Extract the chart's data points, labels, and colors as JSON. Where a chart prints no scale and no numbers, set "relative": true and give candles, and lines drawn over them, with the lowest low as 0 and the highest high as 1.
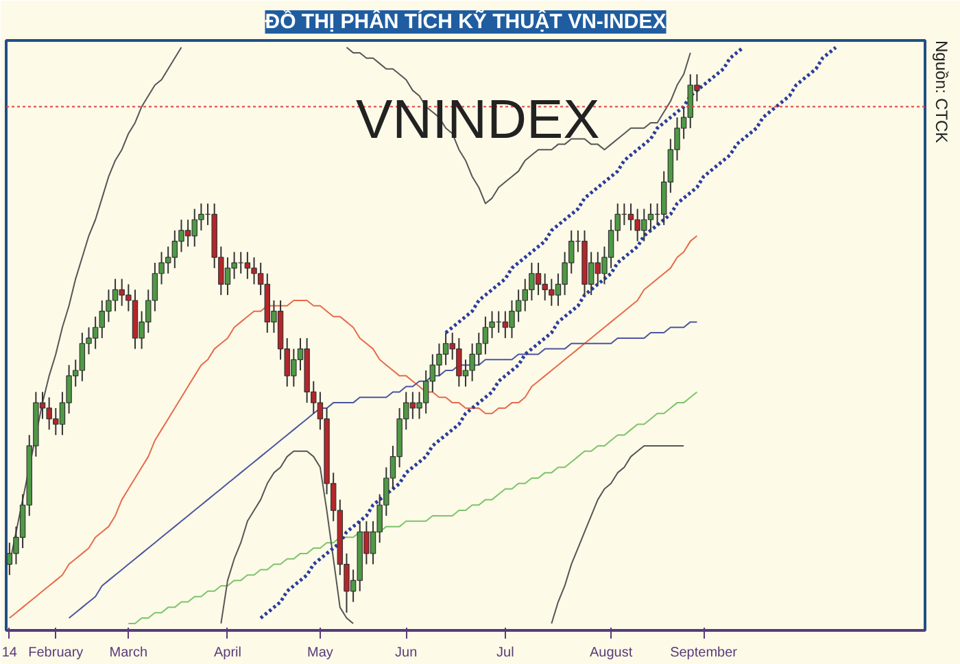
{
  "chart_data": {
    "type": "candlestick",
    "title": "ĐỒ THỊ PHÂN TÍCH KỸ THUẬT VN-INDEX",
    "relative": true,
    "grid": false,
    "annotations": [
      "VNINDEX",
      "Nguồn: CTCK"
    ],
    "categories": [
      "14",
      null,
      null,
      null,
      null,
      null,
      null,
      "February",
      null,
      null,
      null,
      null,
      null,
      null,
      null,
      null,
      null,
      null,
      "March",
      null,
      null,
      null,
      null,
      null,
      null,
      null,
      null,
      null,
      null,
      null,
      null,
      null,
      null,
      "April",
      null,
      null,
      null,
      null,
      null,
      null,
      null,
      null,
      null,
      null,
      null,
      null,
      null,
      "May",
      null,
      null,
      null,
      null,
      null,
      null,
      null,
      null,
      null,
      null,
      null,
      null,
      "Jun",
      null,
      null,
      null,
      null,
      null,
      null,
      null,
      null,
      null,
      null,
      null,
      null,
      null,
      null,
      "Jul",
      null,
      null,
      null,
      null,
      null,
      null,
      null,
      null,
      null,
      null,
      null,
      null,
      null,
      null,
      null,
      "August",
      null,
      null,
      null,
      null,
      null,
      null,
      null,
      null,
      null,
      null,
      null,
      null,
      null,
      "September",
      null,
      null,
      null,
      null,
      null,
      null,
      null,
      null,
      null,
      null,
      null,
      null,
      null,
      null,
      null,
      null,
      null,
      null,
      null,
      null,
      null,
      null,
      null,
      null,
      null,
      null,
      null,
      null,
      null,
      null,
      null,
      null,
      null
    ],
    "ohlc": [
      [
        0.09,
        0.13,
        0.07,
        0.11
      ],
      [
        0.11,
        0.16,
        0.09,
        0.14
      ],
      [
        0.14,
        0.22,
        0.12,
        0.2
      ],
      [
        0.2,
        0.33,
        0.18,
        0.31
      ],
      [
        0.31,
        0.41,
        0.29,
        0.39
      ],
      [
        0.39,
        0.41,
        0.36,
        0.38
      ],
      [
        0.38,
        0.4,
        0.34,
        0.36
      ],
      [
        0.36,
        0.38,
        0.33,
        0.35
      ],
      [
        0.35,
        0.41,
        0.33,
        0.39
      ],
      [
        0.39,
        0.46,
        0.37,
        0.44
      ],
      [
        0.44,
        0.47,
        0.42,
        0.45
      ],
      [
        0.45,
        0.52,
        0.43,
        0.5
      ],
      [
        0.5,
        0.53,
        0.48,
        0.51
      ],
      [
        0.51,
        0.55,
        0.49,
        0.53
      ],
      [
        0.53,
        0.58,
        0.51,
        0.56
      ],
      [
        0.56,
        0.6,
        0.54,
        0.58
      ],
      [
        0.58,
        0.62,
        0.56,
        0.6
      ],
      [
        0.6,
        0.62,
        0.57,
        0.59
      ],
      [
        0.59,
        0.61,
        0.56,
        0.58
      ],
      [
        0.58,
        0.6,
        0.49,
        0.51
      ],
      [
        0.51,
        0.56,
        0.49,
        0.54
      ],
      [
        0.54,
        0.6,
        0.52,
        0.58
      ],
      [
        0.58,
        0.65,
        0.56,
        0.63
      ],
      [
        0.63,
        0.67,
        0.61,
        0.65
      ],
      [
        0.65,
        0.68,
        0.63,
        0.66
      ],
      [
        0.66,
        0.71,
        0.64,
        0.69
      ],
      [
        0.69,
        0.73,
        0.67,
        0.71
      ],
      [
        0.71,
        0.73,
        0.68,
        0.7
      ],
      [
        0.7,
        0.75,
        0.68,
        0.73
      ],
      [
        0.73,
        0.76,
        0.71,
        0.74
      ],
      [
        0.74,
        0.76,
        0.72,
        0.74
      ],
      [
        0.74,
        0.76,
        0.64,
        0.66
      ],
      [
        0.66,
        0.68,
        0.59,
        0.61
      ],
      [
        0.61,
        0.66,
        0.59,
        0.64
      ],
      [
        0.64,
        0.67,
        0.62,
        0.65
      ],
      [
        0.65,
        0.67,
        0.63,
        0.65
      ],
      [
        0.65,
        0.67,
        0.62,
        0.64
      ],
      [
        0.64,
        0.66,
        0.61,
        0.63
      ],
      [
        0.63,
        0.65,
        0.59,
        0.61
      ],
      [
        0.61,
        0.63,
        0.52,
        0.54
      ],
      [
        0.54,
        0.58,
        0.52,
        0.56
      ],
      [
        0.56,
        0.58,
        0.47,
        0.49
      ],
      [
        0.49,
        0.51,
        0.42,
        0.44
      ],
      [
        0.44,
        0.49,
        0.42,
        0.47
      ],
      [
        0.47,
        0.51,
        0.45,
        0.49
      ],
      [
        0.49,
        0.51,
        0.39,
        0.41
      ],
      [
        0.41,
        0.43,
        0.37,
        0.39
      ],
      [
        0.39,
        0.41,
        0.34,
        0.36
      ],
      [
        0.36,
        0.38,
        0.22,
        0.24
      ],
      [
        0.24,
        0.26,
        0.17,
        0.19
      ],
      [
        0.19,
        0.21,
        0.07,
        0.09
      ],
      [
        0.09,
        0.11,
        0.0,
        0.04
      ],
      [
        0.04,
        0.08,
        0.02,
        0.06
      ],
      [
        0.06,
        0.17,
        0.04,
        0.15
      ],
      [
        0.15,
        0.17,
        0.09,
        0.11
      ],
      [
        0.11,
        0.17,
        0.09,
        0.15
      ],
      [
        0.15,
        0.22,
        0.13,
        0.2
      ],
      [
        0.2,
        0.27,
        0.18,
        0.25
      ],
      [
        0.25,
        0.31,
        0.23,
        0.29
      ],
      [
        0.29,
        0.38,
        0.27,
        0.36
      ],
      [
        0.36,
        0.41,
        0.34,
        0.39
      ],
      [
        0.39,
        0.41,
        0.36,
        0.38
      ],
      [
        0.38,
        0.41,
        0.36,
        0.39
      ],
      [
        0.39,
        0.45,
        0.37,
        0.43
      ],
      [
        0.43,
        0.48,
        0.41,
        0.46
      ],
      [
        0.46,
        0.5,
        0.44,
        0.48
      ],
      [
        0.48,
        0.52,
        0.46,
        0.5
      ],
      [
        0.5,
        0.52,
        0.47,
        0.49
      ],
      [
        0.49,
        0.51,
        0.42,
        0.44
      ],
      [
        0.44,
        0.47,
        0.42,
        0.45
      ],
      [
        0.45,
        0.5,
        0.43,
        0.48
      ],
      [
        0.48,
        0.52,
        0.46,
        0.5
      ],
      [
        0.5,
        0.55,
        0.48,
        0.53
      ],
      [
        0.53,
        0.56,
        0.51,
        0.54
      ],
      [
        0.54,
        0.56,
        0.52,
        0.54
      ],
      [
        0.54,
        0.56,
        0.51,
        0.53
      ],
      [
        0.53,
        0.58,
        0.51,
        0.56
      ],
      [
        0.56,
        0.6,
        0.54,
        0.58
      ],
      [
        0.58,
        0.62,
        0.56,
        0.6
      ],
      [
        0.6,
        0.65,
        0.58,
        0.63
      ],
      [
        0.63,
        0.65,
        0.59,
        0.61
      ],
      [
        0.61,
        0.63,
        0.58,
        0.6
      ],
      [
        0.6,
        0.62,
        0.57,
        0.59
      ],
      [
        0.59,
        0.63,
        0.57,
        0.61
      ],
      [
        0.61,
        0.67,
        0.59,
        0.65
      ],
      [
        0.65,
        0.71,
        0.63,
        0.69
      ],
      [
        0.69,
        0.71,
        0.67,
        0.69
      ],
      [
        0.69,
        0.71,
        0.59,
        0.61
      ],
      [
        0.61,
        0.67,
        0.59,
        0.65
      ],
      [
        0.65,
        0.67,
        0.61,
        0.63
      ],
      [
        0.63,
        0.68,
        0.61,
        0.66
      ],
      [
        0.66,
        0.73,
        0.64,
        0.71
      ],
      [
        0.71,
        0.76,
        0.69,
        0.74
      ],
      [
        0.74,
        0.76,
        0.72,
        0.74
      ],
      [
        0.74,
        0.76,
        0.71,
        0.73
      ],
      [
        0.73,
        0.75,
        0.69,
        0.71
      ],
      [
        0.71,
        0.75,
        0.69,
        0.73
      ],
      [
        0.73,
        0.76,
        0.71,
        0.74
      ],
      [
        0.74,
        0.76,
        0.72,
        0.74
      ],
      [
        0.74,
        0.82,
        0.72,
        0.8
      ],
      [
        0.8,
        0.88,
        0.78,
        0.86
      ],
      [
        0.86,
        0.92,
        0.84,
        0.9
      ],
      [
        0.9,
        0.94,
        0.88,
        0.92
      ],
      [
        0.92,
        1.0,
        0.9,
        0.98
      ],
      [
        0.98,
        1.0,
        0.95,
        0.97
      ],
      null,
      null,
      null,
      null,
      null,
      null,
      null,
      null,
      null,
      null,
      null,
      null,
      null,
      null,
      null,
      null,
      null,
      null,
      null,
      null,
      null,
      null,
      null,
      null,
      null,
      null,
      null,
      null,
      null,
      null,
      null,
      null,
      null,
      null
    ],
    "series": [
      {
        "type": "line",
        "color": "#e8694a",
        "line_style": "solid",
        "values": [
          -0.01,
          0,
          0.01,
          0.02,
          0.03,
          0.04,
          0.05,
          0.06,
          0.07,
          0.09,
          0.1,
          0.11,
          0.12,
          0.14,
          0.15,
          0.16,
          0.18,
          0.21,
          0.23,
          0.25,
          0.27,
          0.29,
          0.32,
          0.34,
          0.36,
          0.38,
          0.4,
          0.42,
          0.44,
          0.46,
          0.47,
          0.49,
          0.5,
          0.51,
          0.53,
          0.54,
          0.55,
          0.56,
          0.56,
          0.57,
          0.57,
          0.57,
          0.57,
          0.58,
          0.58,
          0.58,
          0.57,
          0.57,
          0.56,
          0.55,
          0.55,
          0.54,
          0.53,
          0.51,
          0.5,
          0.49,
          0.47,
          0.46,
          0.45,
          0.44,
          0.44,
          0.43,
          0.42,
          0.41,
          0.41,
          0.4,
          0.4,
          0.39,
          0.39,
          0.38,
          0.38,
          0.38,
          0.37,
          0.37,
          0.38,
          0.38,
          0.39,
          0.39,
          0.4,
          0.42,
          0.43,
          0.44,
          0.45,
          0.46,
          0.47,
          0.48,
          0.49,
          0.5,
          0.51,
          0.52,
          0.53,
          0.54,
          0.55,
          0.56,
          0.57,
          0.58,
          0.6,
          0.61,
          0.62,
          0.63,
          0.64,
          0.66,
          0.67,
          0.69,
          0.7,
          null,
          null,
          null,
          null,
          null,
          null,
          null,
          null,
          null,
          null,
          null,
          null,
          null,
          null,
          null,
          null,
          null,
          null,
          null,
          null,
          null,
          null,
          null,
          null,
          null,
          null,
          null,
          null,
          null,
          null,
          null,
          null,
          null,
          null
        ]
      },
      {
        "type": "line",
        "color": "#4a55a0",
        "line_style": "solid",
        "values": [
          null,
          null,
          null,
          null,
          null,
          null,
          null,
          null,
          null,
          -0.01,
          0,
          0.01,
          0.02,
          0.03,
          0.05,
          0.06,
          0.07,
          0.08,
          0.09,
          0.1,
          0.11,
          0.12,
          0.13,
          0.14,
          0.15,
          0.16,
          0.17,
          0.18,
          0.19,
          0.2,
          0.21,
          0.22,
          0.23,
          0.24,
          0.25,
          0.26,
          0.27,
          0.28,
          0.29,
          0.3,
          0.31,
          0.32,
          0.33,
          0.34,
          0.35,
          0.36,
          0.37,
          0.38,
          0.38,
          0.39,
          0.39,
          0.39,
          0.39,
          0.4,
          0.4,
          0.4,
          0.4,
          0.4,
          0.41,
          0.41,
          0.42,
          0.42,
          0.43,
          0.43,
          0.44,
          0.44,
          0.45,
          0.45,
          0.46,
          0.46,
          0.46,
          0.46,
          0.47,
          0.47,
          0.47,
          0.47,
          0.47,
          0.48,
          0.48,
          0.48,
          0.48,
          0.49,
          0.49,
          0.49,
          0.49,
          0.5,
          0.5,
          0.5,
          0.5,
          0.5,
          0.5,
          0.5,
          0.51,
          0.51,
          0.51,
          0.51,
          0.51,
          0.52,
          0.52,
          0.52,
          0.53,
          0.53,
          0.53,
          0.54,
          0.54,
          null,
          null,
          null,
          null,
          null,
          null,
          null,
          null,
          null,
          null,
          null,
          null,
          null,
          null,
          null,
          null,
          null,
          null,
          null,
          null,
          null,
          null,
          null,
          null,
          null,
          null,
          null,
          null,
          null,
          null,
          null,
          null,
          null,
          null
        ]
      },
      {
        "type": "line",
        "color": "#7cc46a",
        "line_style": "solid",
        "values": [
          null,
          null,
          null,
          null,
          null,
          null,
          null,
          null,
          null,
          null,
          null,
          null,
          null,
          null,
          null,
          null,
          null,
          null,
          -0.02,
          -0.02,
          -0.01,
          -0.01,
          0,
          0,
          0.01,
          0.01,
          0.02,
          0.02,
          0.03,
          0.03,
          0.04,
          0.04,
          0.05,
          0.05,
          0.06,
          0.06,
          0.07,
          0.07,
          0.08,
          0.08,
          0.09,
          0.09,
          0.1,
          0.1,
          0.11,
          0.11,
          0.12,
          0.12,
          0.13,
          0.13,
          0.14,
          0.14,
          0.14,
          0.15,
          0.15,
          0.15,
          0.15,
          0.16,
          0.16,
          0.16,
          0.17,
          0.17,
          0.17,
          0.17,
          0.18,
          0.18,
          0.18,
          0.18,
          0.19,
          0.19,
          0.2,
          0.2,
          0.21,
          0.21,
          0.22,
          0.23,
          0.23,
          0.24,
          0.24,
          0.25,
          0.25,
          0.26,
          0.26,
          0.27,
          0.27,
          0.28,
          0.29,
          0.3,
          0.3,
          0.31,
          0.31,
          0.32,
          0.33,
          0.33,
          0.34,
          0.35,
          0.35,
          0.36,
          0.37,
          0.37,
          0.38,
          0.39,
          0.39,
          0.4,
          0.41,
          null,
          null,
          null,
          null,
          null,
          null,
          null,
          null,
          null,
          null,
          null,
          null,
          null,
          null,
          null,
          null,
          null,
          null,
          null,
          null,
          null,
          null,
          null,
          null,
          null,
          null,
          null,
          null,
          null,
          null,
          null,
          null,
          null,
          null
        ]
      },
      {
        "type": "line",
        "color": "#555555",
        "line_style": "solid",
        "values": [
          0.09,
          0.15,
          0.21,
          0.27,
          0.33,
          0.39,
          0.44,
          0.48,
          0.53,
          0.57,
          0.62,
          0.66,
          0.7,
          0.73,
          0.77,
          0.81,
          0.84,
          0.86,
          0.89,
          0.91,
          0.94,
          0.96,
          0.98,
          0.99,
          1.01,
          1.03,
          1.05,
          null,
          null,
          null,
          null,
          null,
          null,
          null,
          null,
          null,
          null,
          null,
          null,
          null,
          null,
          null,
          null,
          null,
          null,
          null,
          null,
          null,
          null,
          null,
          null,
          1.05,
          1.04,
          1.04,
          1.03,
          1.03,
          1.02,
          1.01,
          1.01,
          1.0,
          0.99,
          0.97,
          0.96,
          0.94,
          0.93,
          0.92,
          0.9,
          0.89,
          0.86,
          0.84,
          0.81,
          0.79,
          0.76,
          0.77,
          0.79,
          0.8,
          0.81,
          0.82,
          0.84,
          0.85,
          0.86,
          0.86,
          0.86,
          0.87,
          0.87,
          0.88,
          0.88,
          0.88,
          0.87,
          0.87,
          0.86,
          0.87,
          0.88,
          0.89,
          0.9,
          0.9,
          0.9,
          0.91,
          0.91,
          0.93,
          0.95,
          0.98,
          1.0,
          1.04,
          null,
          null,
          null,
          null,
          null,
          null,
          null,
          null,
          null,
          null,
          null,
          null,
          null,
          null,
          null,
          null,
          null,
          null,
          null,
          null,
          null,
          null,
          null,
          null,
          null,
          null,
          null,
          null,
          null,
          null,
          null,
          null,
          null,
          null,
          null
        ]
      },
      {
        "type": "line",
        "color": "#555555",
        "line_style": "solid",
        "values": [
          null,
          null,
          null,
          null,
          null,
          null,
          null,
          null,
          null,
          null,
          null,
          null,
          null,
          null,
          null,
          null,
          null,
          null,
          null,
          null,
          null,
          null,
          null,
          null,
          null,
          null,
          null,
          null,
          null,
          null,
          null,
          null,
          -0.02,
          0.06,
          0.1,
          0.13,
          0.17,
          0.19,
          0.21,
          0.24,
          0.26,
          0.27,
          0.29,
          0.3,
          0.3,
          0.3,
          0.29,
          0.27,
          0.19,
          0.1,
          0.01,
          -0.01,
          -0.02,
          null,
          null,
          null,
          null,
          null,
          null,
          null,
          null,
          null,
          null,
          null,
          null,
          null,
          null,
          null,
          null,
          null,
          null,
          null,
          null,
          null,
          null,
          null,
          null,
          null,
          null,
          null,
          null,
          null,
          -0.02,
          0.02,
          0.05,
          0.09,
          0.12,
          0.15,
          0.18,
          0.21,
          0.23,
          0.24,
          0.26,
          0.27,
          0.29,
          0.3,
          0.31,
          0.31,
          0.31,
          0.31,
          0.31,
          0.31,
          0.31,
          null,
          null,
          null,
          null,
          null,
          null,
          null,
          null,
          null,
          null,
          null,
          null,
          null,
          null,
          null,
          null,
          null,
          null,
          null,
          null,
          null,
          null,
          null,
          null,
          null,
          null,
          null,
          null,
          null,
          null,
          null,
          null,
          null,
          null,
          null,
          null
        ]
      },
      {
        "type": "line",
        "color": "#2b3d9a",
        "line_style": "dotted",
        "values": [
          null,
          null,
          null,
          null,
          null,
          null,
          null,
          null,
          null,
          null,
          null,
          null,
          null,
          null,
          null,
          null,
          null,
          null,
          null,
          null,
          null,
          null,
          null,
          null,
          null,
          null,
          null,
          null,
          null,
          null,
          null,
          null,
          null,
          null,
          null,
          null,
          null,
          null,
          -0.01,
          0,
          0.01,
          0.02,
          0.04,
          0.05,
          0.06,
          0.07,
          0.09,
          0.1,
          0.11,
          0.12,
          0.13,
          0.15,
          0.16,
          0.17,
          0.18,
          0.2,
          0.21,
          0.22,
          0.23,
          0.24,
          0.26,
          0.27,
          0.28,
          0.29,
          0.31,
          0.32,
          0.33,
          0.34,
          0.35,
          0.37,
          0.38,
          0.39,
          0.4,
          0.41,
          0.43,
          0.44,
          0.45,
          0.46,
          0.48,
          0.49,
          0.5,
          0.51,
          0.52,
          0.54,
          0.55,
          0.56,
          0.57,
          0.59,
          0.6,
          0.61,
          0.62,
          0.63,
          0.65,
          0.66,
          0.67,
          0.68,
          0.7,
          0.71,
          0.72,
          0.73,
          0.74,
          0.76,
          0.77,
          0.78,
          0.79,
          0.81,
          0.82,
          0.83,
          0.84,
          0.85,
          0.87,
          0.88,
          0.89,
          0.9,
          0.92,
          0.93,
          0.94,
          0.95,
          0.96,
          0.98,
          0.99,
          1.0,
          1.01,
          1.03,
          1.04,
          1.05,
          null,
          null,
          null,
          null,
          null,
          null,
          null,
          null,
          null,
          null,
          null,
          null,
          null
        ]
      },
      {
        "type": "line",
        "color": "#2b3d9a",
        "line_style": "dotted",
        "values": [
          null,
          null,
          null,
          null,
          null,
          null,
          null,
          null,
          null,
          null,
          null,
          null,
          null,
          null,
          null,
          null,
          null,
          null,
          null,
          null,
          null,
          null,
          null,
          null,
          null,
          null,
          null,
          null,
          null,
          null,
          null,
          null,
          null,
          null,
          null,
          null,
          null,
          null,
          null,
          null,
          null,
          null,
          null,
          null,
          null,
          null,
          null,
          null,
          null,
          null,
          null,
          null,
          null,
          null,
          null,
          null,
          null,
          null,
          null,
          null,
          null,
          null,
          null,
          null,
          null,
          null,
          0.52,
          0.53,
          0.54,
          0.55,
          0.56,
          0.58,
          0.59,
          0.6,
          0.61,
          0.62,
          0.64,
          0.65,
          0.66,
          0.67,
          0.68,
          0.69,
          0.71,
          0.72,
          0.73,
          0.74,
          0.75,
          0.77,
          0.78,
          0.79,
          0.8,
          0.81,
          0.82,
          0.84,
          0.85,
          0.86,
          0.87,
          0.88,
          0.9,
          0.91,
          0.92,
          0.93,
          0.94,
          0.96,
          0.97,
          0.98,
          0.99,
          1.0,
          1.01,
          1.03,
          1.04,
          1.05,
          null,
          null,
          null,
          null,
          null,
          null,
          null,
          null,
          null,
          null,
          null,
          null,
          null,
          null,
          null,
          null,
          null,
          null,
          null,
          null,
          null,
          null,
          null,
          null,
          null,
          null,
          null
        ]
      }
    ],
    "ref_lines": [
      {
        "axis": "y",
        "value": 0.94,
        "color": "#e03c3c",
        "line_style": "dotted"
      }
    ]
  }
}
